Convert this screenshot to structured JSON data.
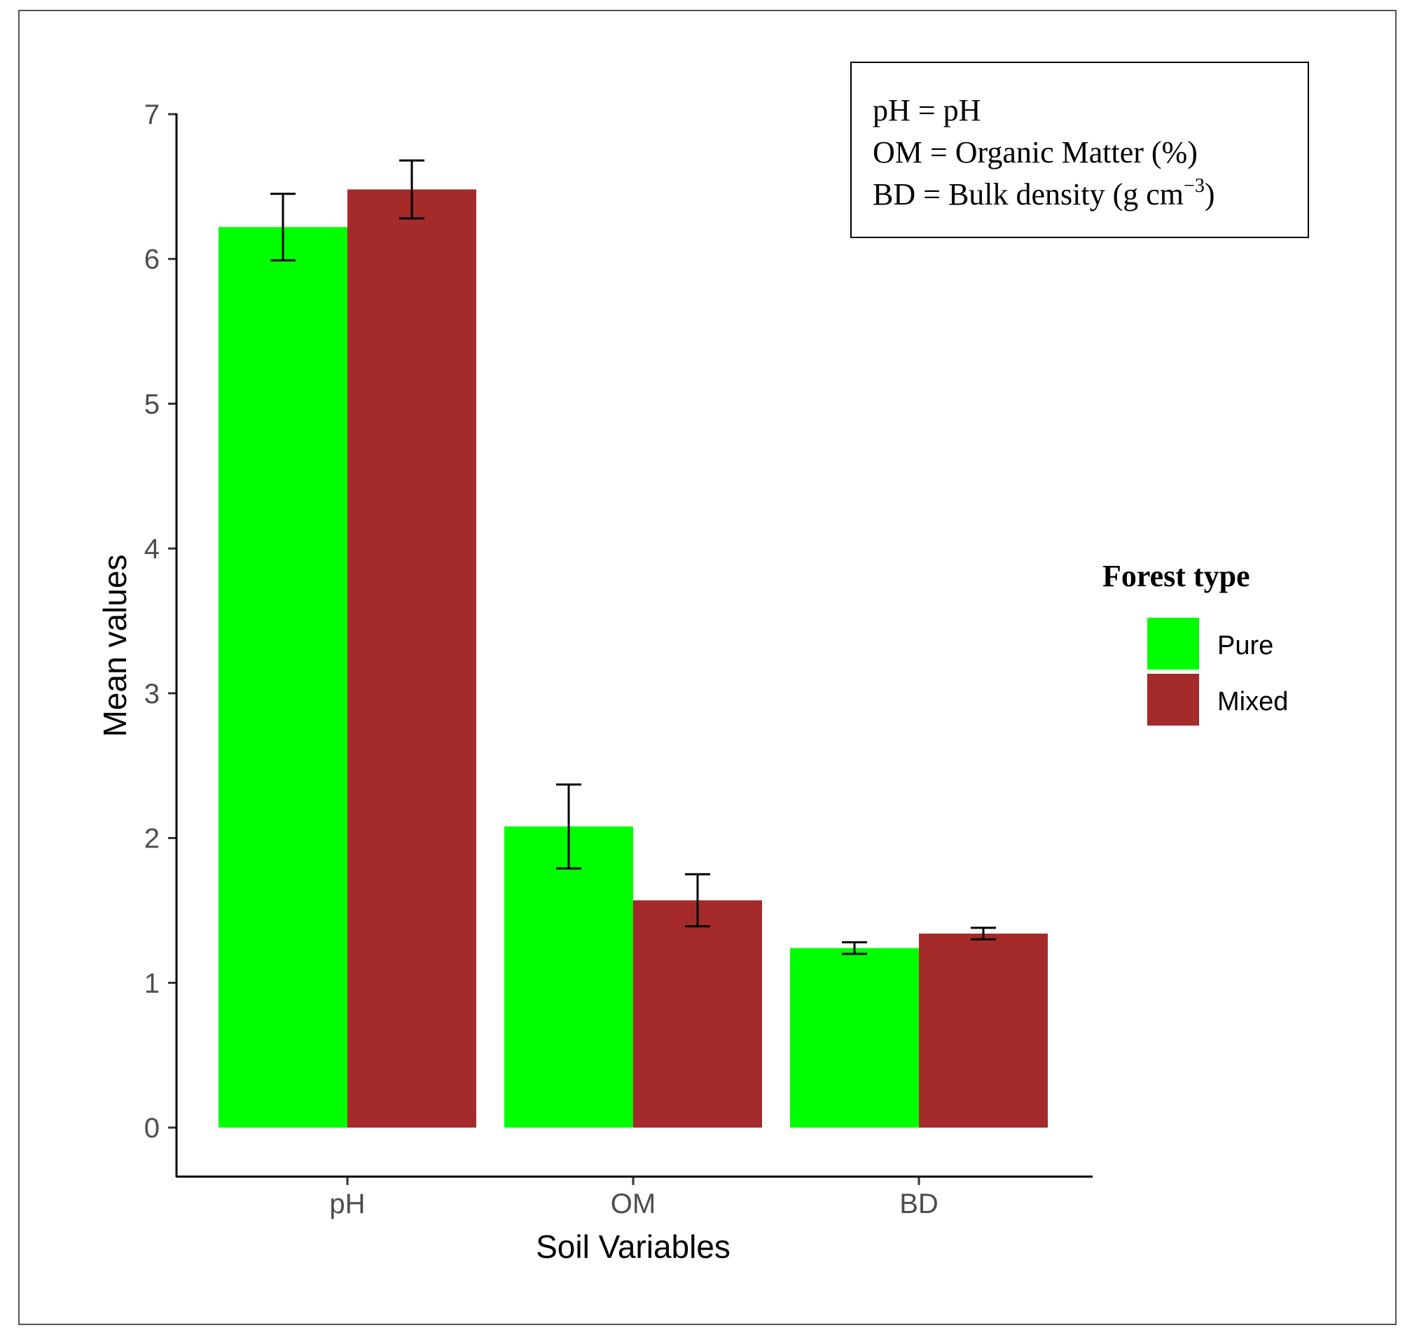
{
  "chart_data": {
    "type": "bar",
    "xlabel": "Soil Variables",
    "ylabel": "Mean values",
    "ylim": [
      0,
      7
    ],
    "yticks": [
      "0",
      "1",
      "2",
      "3",
      "4",
      "5",
      "6",
      "7"
    ],
    "categories": [
      "pH",
      "OM",
      "BD"
    ],
    "series": [
      {
        "name": "Pure",
        "color": "#00ff00",
        "values": [
          6.22,
          2.08,
          1.24
        ],
        "error": [
          0.23,
          0.29,
          0.04
        ]
      },
      {
        "name": "Mixed",
        "color": "#a52a2a",
        "values": [
          6.48,
          1.57,
          1.34
        ],
        "error": [
          0.2,
          0.18,
          0.04
        ]
      }
    ],
    "legend": {
      "title": "Forest type",
      "position": "right"
    }
  },
  "note_box": {
    "line1": "pH = pH",
    "line2": "OM = Organic  Matter (%)",
    "line3_main": "BD = Bulk density  (g cm",
    "line3_sup": "−3",
    "line3_end": ")"
  }
}
